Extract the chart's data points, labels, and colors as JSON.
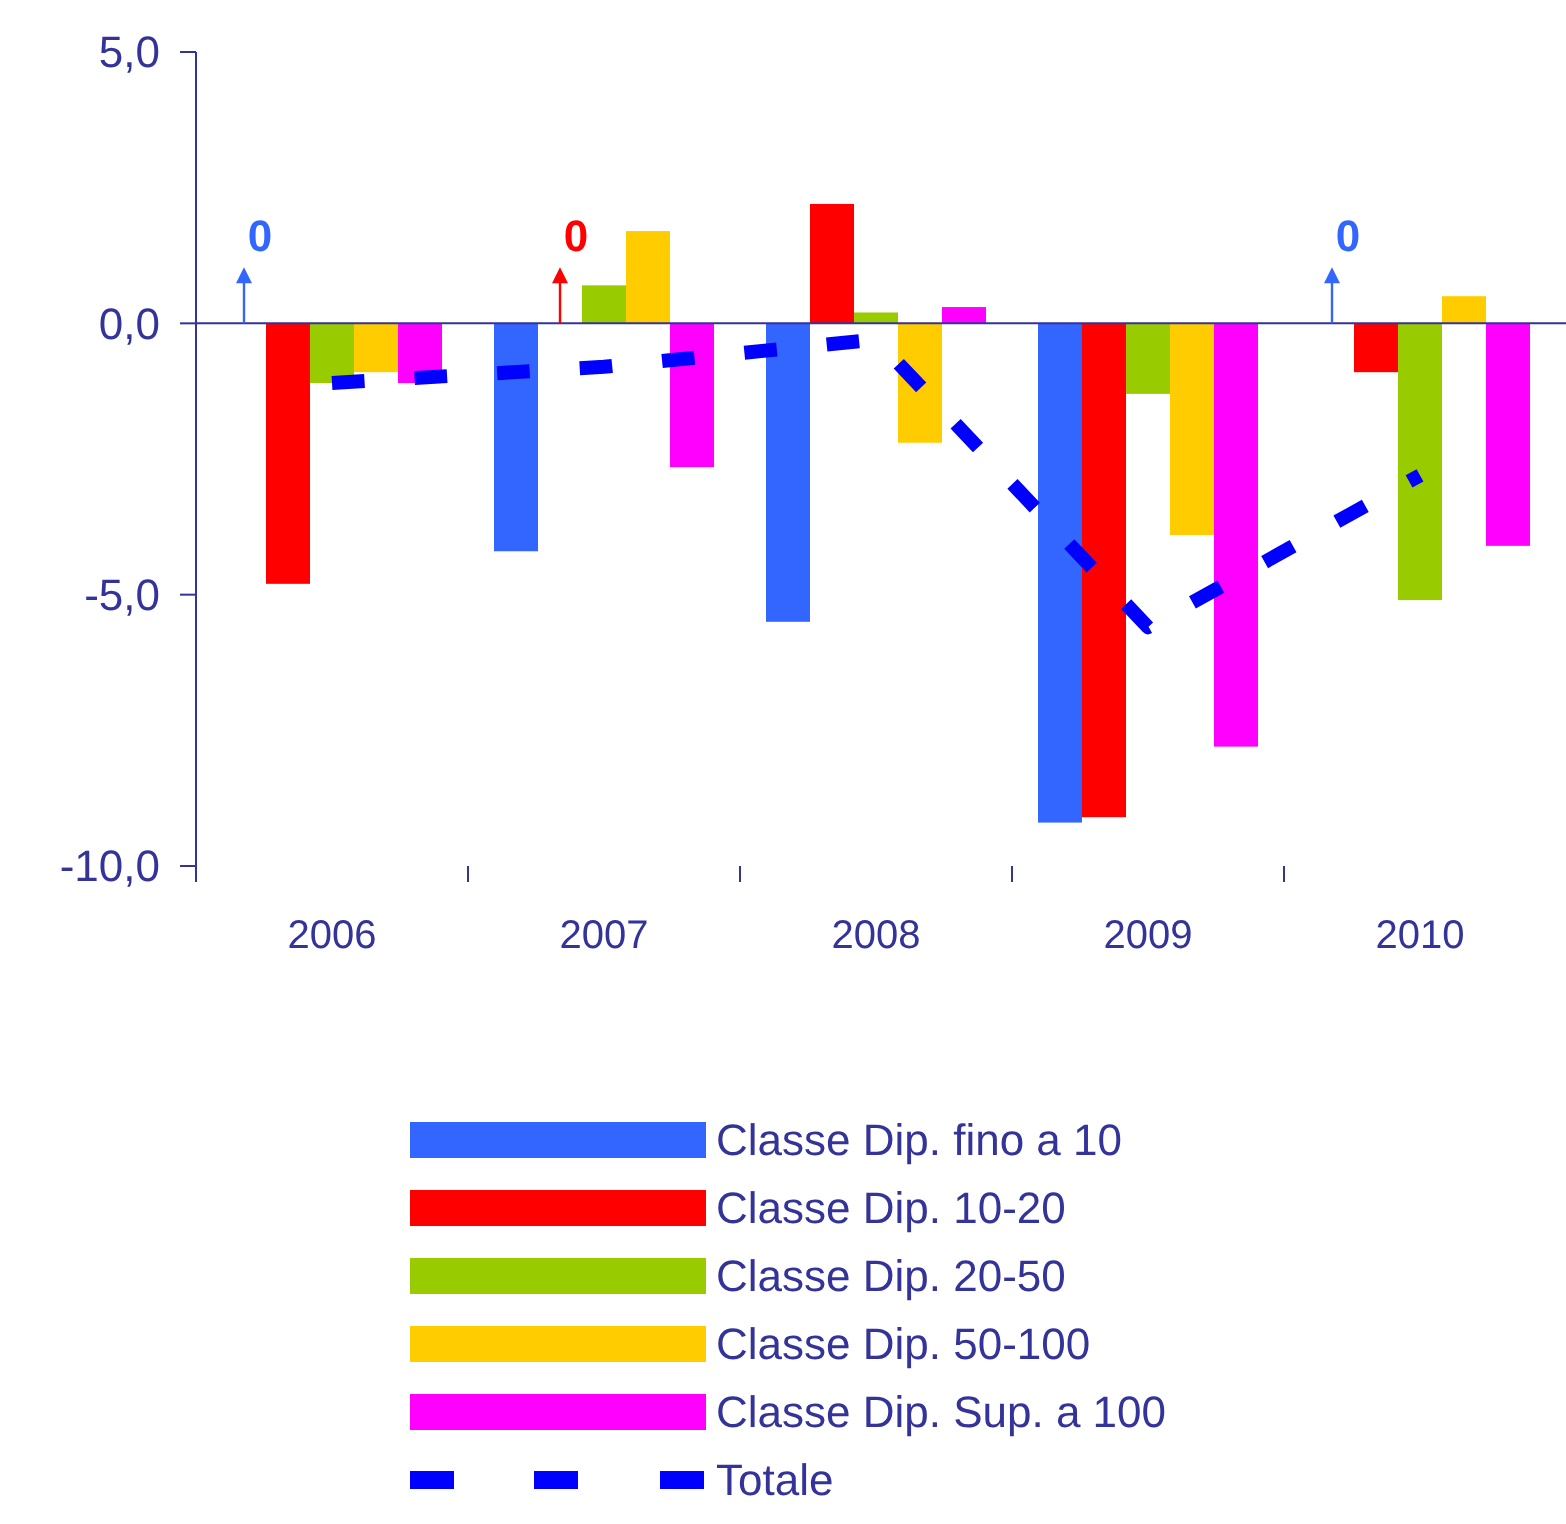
{
  "chart_data": {
    "type": "bar",
    "categories": [
      "2006",
      "2007",
      "2008",
      "2009",
      "2010"
    ],
    "series": [
      {
        "name": "Classe Dip. fino a 10",
        "color": "#3366ff",
        "values": [
          0,
          -4.2,
          -5.5,
          -9.2,
          0
        ]
      },
      {
        "name": "Classe Dip. 10-20",
        "color": "#ff0000",
        "values": [
          -4.8,
          0,
          2.2,
          -9.1,
          -0.9
        ]
      },
      {
        "name": "Classe Dip. 20-50",
        "color": "#99cc00",
        "values": [
          -1.1,
          0.7,
          0.2,
          -1.3,
          -5.1
        ]
      },
      {
        "name": "Classe Dip. 50-100",
        "color": "#ffcc00",
        "values": [
          -0.9,
          1.7,
          -2.2,
          -3.9,
          0.5
        ]
      },
      {
        "name": "Classe Dip. Sup. a 100",
        "color": "#ff00ff",
        "values": [
          -1.1,
          -2.65,
          0.3,
          -7.8,
          -4.1
        ]
      },
      {
        "name": "Totale",
        "type": "line",
        "color": "#0000ff",
        "line_style": "dashed",
        "marker": "none",
        "values": [
          -1.1,
          -0.8,
          -0.3,
          -5.6,
          -2.8
        ]
      }
    ],
    "ylim": [
      -10,
      5
    ],
    "yticks": [
      {
        "value": -10,
        "label": "-10,0"
      },
      {
        "value": -5,
        "label": "-5,0"
      },
      {
        "value": 0,
        "label": "0,0"
      },
      {
        "value": 5,
        "label": "5,0"
      }
    ],
    "annotations": [
      {
        "text": "0",
        "x": "2006",
        "y": 0
      },
      {
        "text": "0",
        "x": "2007",
        "y": 0
      },
      {
        "text": "0",
        "x": "2010",
        "y": 0
      }
    ],
    "ref_lines": [
      {
        "axis": "y",
        "value": 0,
        "color": "#333399"
      }
    ],
    "grid": false,
    "legend": "bottom"
  }
}
